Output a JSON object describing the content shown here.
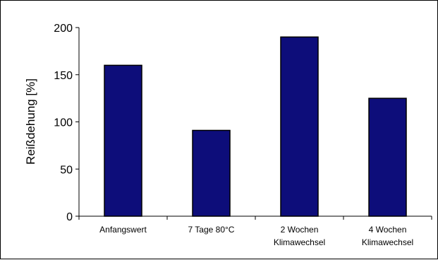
{
  "chart_data": {
    "type": "bar",
    "title": "",
    "xlabel": "",
    "ylabel": "Reißdehung [%]",
    "categories": [
      [
        "Anfangswert"
      ],
      [
        "7 Tage 80°C"
      ],
      [
        "2 Wochen",
        "Klimawechsel"
      ],
      [
        "4 Wochen",
        "Klimawechsel"
      ]
    ],
    "values": [
      160,
      91,
      190,
      125
    ],
    "ylim": [
      0,
      200
    ],
    "yticks": [
      0,
      50,
      100,
      150,
      200
    ],
    "grid": false,
    "legend": "none",
    "colors": {
      "bar_fill": "#0d0d7a",
      "bar_stroke": "#000000"
    }
  }
}
